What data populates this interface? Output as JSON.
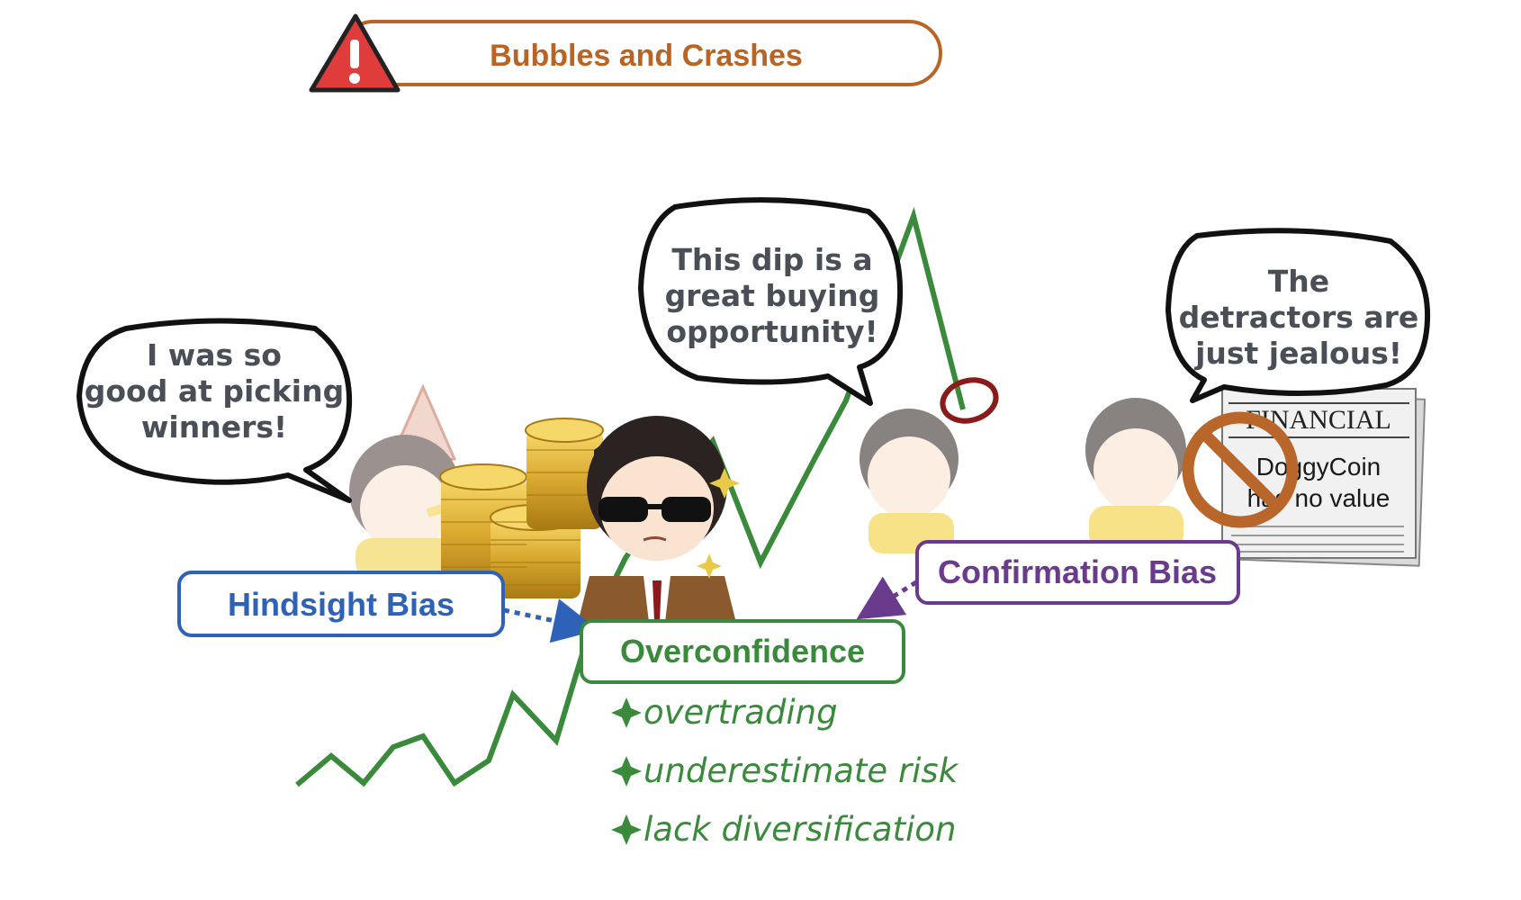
{
  "title": "Bubbles and Crashes",
  "colors": {
    "title": "#b96424",
    "warning": "#e03c3c",
    "line": "#3a8a3c",
    "hindsight": "#2d62b8",
    "overconfidence": "#3a8a3c",
    "confirmation": "#6a3a8c",
    "circle": "#8b1a1a",
    "no_sign": "#b8662a"
  },
  "bubbles": {
    "hindsight": [
      "I was so",
      "good at picking",
      "winners!"
    ],
    "dip": [
      "This dip is a",
      "great buying",
      "opportunity!"
    ],
    "jealous": [
      "The",
      "detractors are",
      "just jealous!"
    ]
  },
  "labels": {
    "hindsight": "Hindsight Bias",
    "overconfidence": "Overconfidence",
    "confirmation": "Confirmation Bias"
  },
  "consequences": [
    "overtrading",
    "underestimate risk",
    "lack diversification"
  ],
  "newspaper": {
    "masthead": "FINANCIAL",
    "headline_1": "DoggyCoin",
    "headline_2": "has no value"
  },
  "icons": {
    "warning": "warning-triangle-icon",
    "no_sign": "prohibition-icon",
    "coins": "coin-stack-icon",
    "star": "sparkle-icon"
  }
}
